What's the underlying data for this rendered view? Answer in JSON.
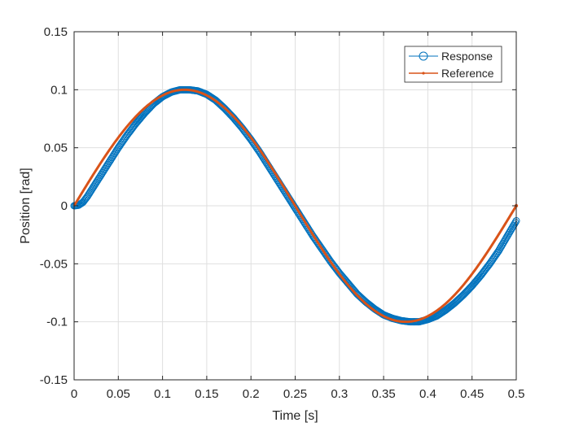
{
  "chart_data": {
    "type": "line",
    "title": "",
    "xlabel": "Time [s]",
    "ylabel": "Position [rad]",
    "xlim": [
      0,
      0.5
    ],
    "ylim": [
      -0.15,
      0.15
    ],
    "xticks": [
      0,
      0.05,
      0.1,
      0.15,
      0.2,
      0.25,
      0.3,
      0.35,
      0.4,
      0.45,
      0.5
    ],
    "xtick_labels": [
      "0",
      "0.05",
      "0.1",
      "0.15",
      "0.2",
      "0.25",
      "0.3",
      "0.35",
      "0.4",
      "0.45",
      "0.5"
    ],
    "yticks": [
      -0.15,
      -0.1,
      -0.05,
      0,
      0.05,
      0.1,
      0.15
    ],
    "ytick_labels": [
      "-0.15",
      "-0.1",
      "-0.05",
      "0",
      "0.05",
      "0.1",
      "0.15"
    ],
    "grid": true,
    "legend_position": "top-right",
    "series": [
      {
        "name": "Response",
        "color": "#0072BD",
        "marker": "circle",
        "x": [
          0,
          0.005,
          0.01,
          0.015,
          0.02,
          0.025,
          0.03,
          0.04,
          0.05,
          0.06,
          0.07,
          0.08,
          0.09,
          0.1,
          0.11,
          0.12,
          0.13,
          0.14,
          0.15,
          0.16,
          0.17,
          0.18,
          0.19,
          0.2,
          0.21,
          0.22,
          0.23,
          0.24,
          0.25,
          0.26,
          0.27,
          0.28,
          0.29,
          0.3,
          0.31,
          0.32,
          0.33,
          0.34,
          0.35,
          0.36,
          0.37,
          0.38,
          0.39,
          0.4,
          0.41,
          0.42,
          0.43,
          0.44,
          0.45,
          0.46,
          0.47,
          0.48,
          0.49,
          0.5
        ],
        "y": [
          0,
          0.0005,
          0.003,
          0.008,
          0.014,
          0.02,
          0.026,
          0.038,
          0.05,
          0.061,
          0.071,
          0.08,
          0.088,
          0.094,
          0.098,
          0.1,
          0.1,
          0.099,
          0.096,
          0.091,
          0.084,
          0.076,
          0.067,
          0.057,
          0.046,
          0.034,
          0.022,
          0.01,
          -0.002,
          -0.014,
          -0.026,
          -0.037,
          -0.048,
          -0.058,
          -0.067,
          -0.076,
          -0.083,
          -0.089,
          -0.094,
          -0.097,
          -0.099,
          -0.1,
          -0.1,
          -0.098,
          -0.095,
          -0.09,
          -0.084,
          -0.077,
          -0.069,
          -0.06,
          -0.05,
          -0.039,
          -0.026,
          -0.013
        ]
      },
      {
        "name": "Reference",
        "color": "#D95319",
        "marker": "dot",
        "function": "0.1*sin(4*pi*t)"
      }
    ]
  }
}
